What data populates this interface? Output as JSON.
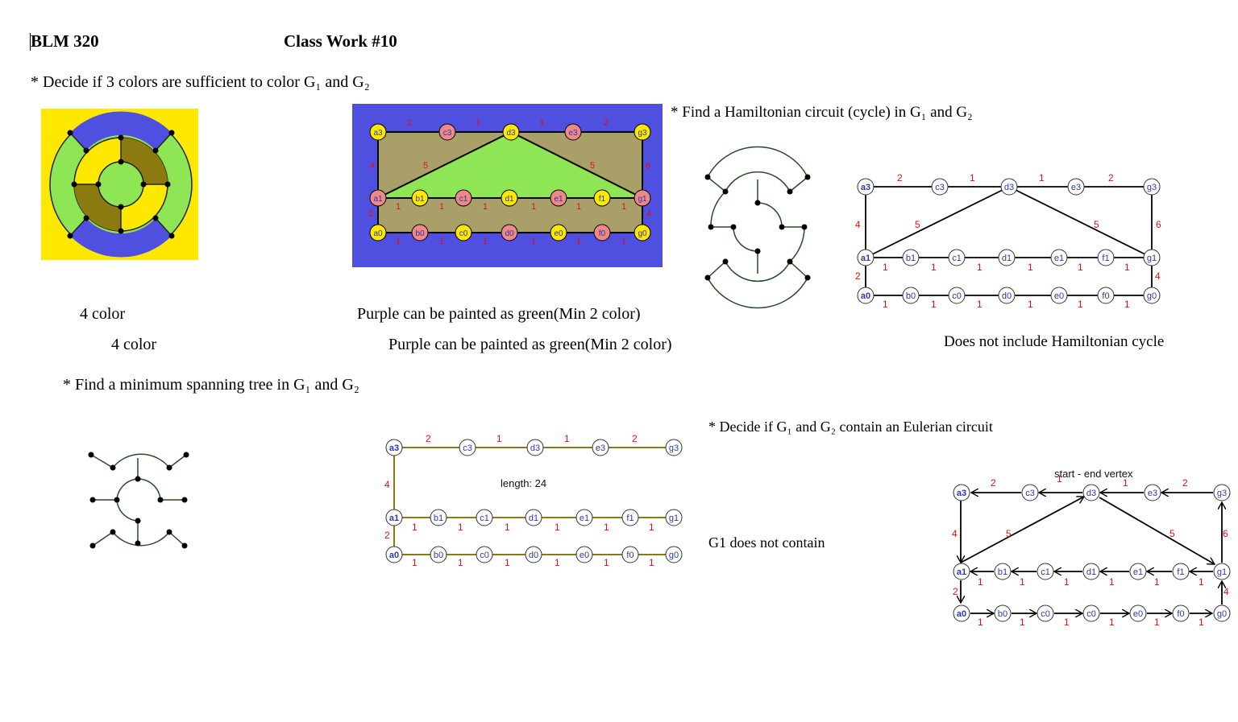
{
  "header": {
    "course": "BLM 320",
    "title": "Class Work #10"
  },
  "questions": {
    "coloring": "* Decide if 3 colors are sufficient to color G₁ and G₂",
    "hamiltonian": "* Find a Hamiltonian circuit (cycle) in G₁ and G₂",
    "mst": "* Find a minimum spanning tree in G₁ and G₂",
    "eulerian": "* Decide if G₁ and G₂ contain an Eulerian circuit"
  },
  "answers": {
    "g1_coloring": "4 color",
    "g2_coloring": "Purple can be painted as green(Min 2 color)",
    "g1_coloring_ghost": "4 color",
    "g2_coloring_ghost": "Purple can be painted as green(Min 2 color)",
    "g2_hamiltonian": "Does not include Hamiltonian cycle",
    "g1_eulerian": "G1 does not contain"
  },
  "figures": {
    "mst_length": "length: 24",
    "euler_start": "start - end vertex"
  },
  "graph_g2": {
    "vertices": [
      "a3",
      "c3",
      "d3",
      "e3",
      "g3",
      "a1",
      "b1",
      "c1",
      "d1",
      "e1",
      "f1",
      "g1",
      "a0",
      "b0",
      "c0",
      "d0",
      "e0",
      "f0",
      "g0"
    ],
    "top_weights": [
      "2",
      "1",
      "1",
      "2"
    ],
    "diag_weights": [
      "5",
      "5"
    ],
    "side_weights": [
      "4",
      "6",
      "2",
      "4"
    ],
    "row_weights": [
      "1",
      "1",
      "1",
      "1",
      "1",
      "1"
    ]
  },
  "colors": {
    "yellow": "#ffe800",
    "blue": "#5050e0",
    "green": "#8ee654",
    "olive": "#8a7a10",
    "khaki": "#a8a068",
    "pink": "#f08888",
    "weight_red": "#e01010",
    "node_label_blue": "#2a3aa8"
  }
}
